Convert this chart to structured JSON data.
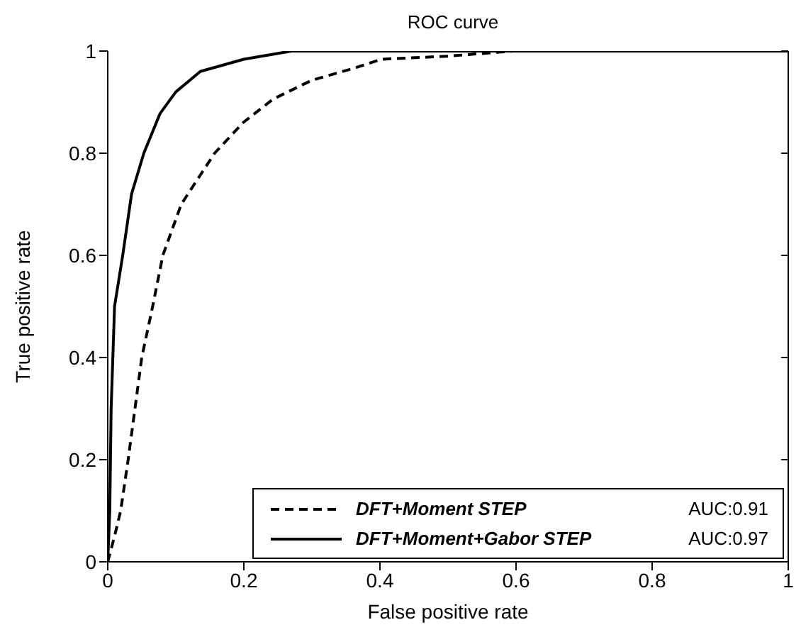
{
  "chart_data": {
    "type": "line",
    "title": "ROC curve",
    "xlabel": "False positive rate",
    "ylabel": "True positive rate",
    "xlim": [
      0,
      1
    ],
    "xticks": [
      0,
      0.2,
      0.4,
      0.6,
      0.8,
      1
    ],
    "ylim": [
      0,
      1
    ],
    "yticks": [
      0,
      0.2,
      0.4,
      0.6,
      0.8,
      1
    ],
    "grid": false,
    "legend": "bottom right",
    "marker": "none",
    "annotations": [
      "AUC:0.91",
      "AUC:0.97"
    ],
    "series": [
      {
        "name": "DFT+Moment STEP",
        "color": "#000000",
        "line_style": "dashed",
        "x": [
          0,
          0.01,
          0.019,
          0.03,
          0.05,
          0.066,
          0.081,
          0.108,
          0.157,
          0.199,
          0.243,
          0.3,
          0.361,
          0.402,
          0.5,
          0.595,
          1
        ],
        "values": [
          0,
          0.05,
          0.1,
          0.2,
          0.4,
          0.5,
          0.6,
          0.7,
          0.8,
          0.86,
          0.906,
          0.943,
          0.966,
          0.984,
          0.99,
          1,
          1
        ]
      },
      {
        "name": "DFT+Moment+Gabor STEP",
        "color": "#000000",
        "line_style": "solid",
        "x": [
          0,
          0.003,
          0.005,
          0.01,
          0.022,
          0.035,
          0.053,
          0.077,
          0.1,
          0.136,
          0.2,
          0.27,
          0.4,
          1
        ],
        "values": [
          0,
          0.1,
          0.3,
          0.5,
          0.6,
          0.72,
          0.8,
          0.878,
          0.92,
          0.96,
          0.984,
          1,
          1,
          1
        ]
      }
    ]
  }
}
